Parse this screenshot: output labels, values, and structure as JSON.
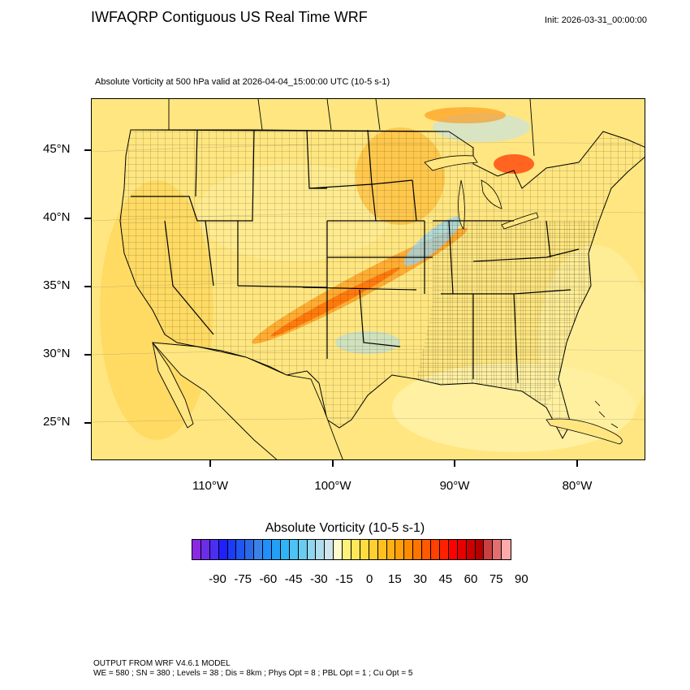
{
  "header": {
    "title": "IWFAQRP Contiguous US Real Time WRF",
    "init": "Init: 2026-03-31_00:00:00",
    "subtitle": "Absolute Vorticity at 500 hPa valid at 2026-04-04_15:00:00 UTC   (10-5 s-1)"
  },
  "map": {
    "lat_labels": [
      "45°N",
      "40°N",
      "35°N",
      "30°N",
      "25°N"
    ],
    "lon_labels": [
      "110°W",
      "100°W",
      "90°W",
      "80°W"
    ],
    "field": "absolute vorticity 500 hPa",
    "background_color": "#ffe680",
    "boundary_color": "#000000"
  },
  "colorbar": {
    "title": "Absolute Vorticity  (10-5 s-1)",
    "labels": [
      "-90",
      "-75",
      "-60",
      "-45",
      "-30",
      "-15",
      "0",
      "15",
      "30",
      "45",
      "60",
      "75",
      "90"
    ],
    "colors": [
      "#8a2be2",
      "#6a2de8",
      "#4b2ff0",
      "#2020ff",
      "#1a3cf5",
      "#1f55f0",
      "#2a6ae8",
      "#3b82e8",
      "#1e90ff",
      "#22a0f5",
      "#30b4f5",
      "#4cc2f5",
      "#69cdf0",
      "#8fd6ee",
      "#b0dcec",
      "#cfe4ec",
      "#fffacd",
      "#fff27a",
      "#ffe85a",
      "#ffdd40",
      "#ffd030",
      "#ffc020",
      "#ffb014",
      "#ffa00a",
      "#ff8c00",
      "#ff7400",
      "#ff5a00",
      "#ff4000",
      "#ff2000",
      "#ff0000",
      "#e60000",
      "#cc0000",
      "#b40000",
      "#c84040",
      "#e07070",
      "#ffaaaa"
    ]
  },
  "footer": {
    "line1": "OUTPUT FROM WRF V4.6.1 MODEL",
    "line2": "WE = 580 ; SN = 380 ; Levels = 38 ; Dis = 8km ; Phys Opt = 8 ; PBL Opt = 1 ; Cu Opt = 5"
  }
}
